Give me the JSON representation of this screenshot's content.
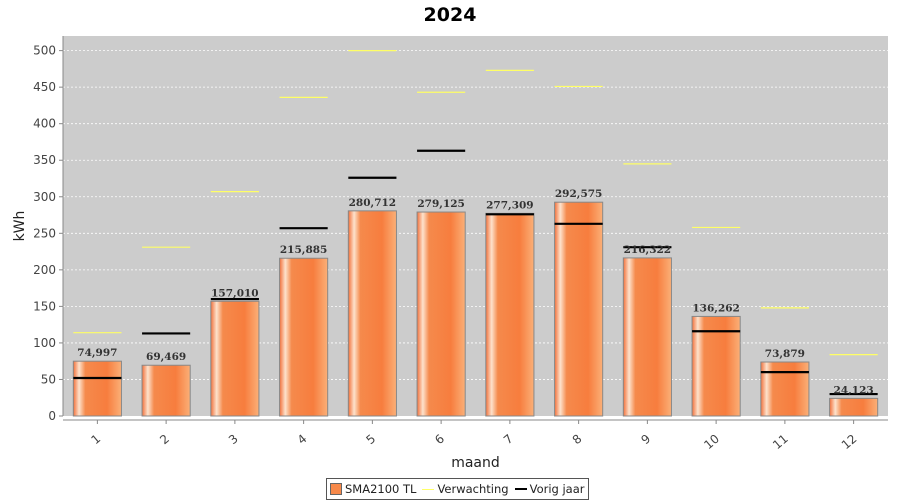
{
  "chart_data": {
    "type": "bar",
    "title": "2024",
    "xlabel": "maand",
    "ylabel": "kWh",
    "ylim": [
      0,
      520
    ],
    "yticks": [
      0,
      50,
      100,
      150,
      200,
      250,
      300,
      350,
      400,
      450,
      500
    ],
    "categories": [
      "1",
      "2",
      "3",
      "4",
      "5",
      "6",
      "7",
      "8",
      "9",
      "10",
      "11",
      "12"
    ],
    "series": [
      {
        "name": "SMA2100 TL",
        "kind": "bar",
        "color": "#f7894a",
        "values": [
          74.997,
          69.469,
          157.01,
          215.885,
          280.712,
          279.125,
          277.309,
          292.575,
          216.322,
          136.262,
          73.879,
          24.123
        ],
        "labels": [
          "74,997",
          "69,469",
          "157,010",
          "215,885",
          "280,712",
          "279,125",
          "277,309",
          "292,575",
          "216,322",
          "136,262",
          "73,879",
          "24,123"
        ]
      },
      {
        "name": "Verwachting",
        "kind": "marker",
        "color": "#ffff66",
        "values": [
          114,
          231,
          307,
          436,
          500,
          443,
          473,
          451,
          345,
          258,
          148,
          84
        ]
      },
      {
        "name": "Vorig jaar",
        "kind": "marker",
        "color": "#000000",
        "values": [
          52,
          113,
          160,
          257,
          326,
          363,
          276,
          263,
          231,
          116,
          60,
          30
        ]
      }
    ],
    "grid": true,
    "legend_position": "bottom",
    "colors": {
      "plot_background": "#cccccc",
      "gridline": "#ffffff"
    }
  }
}
